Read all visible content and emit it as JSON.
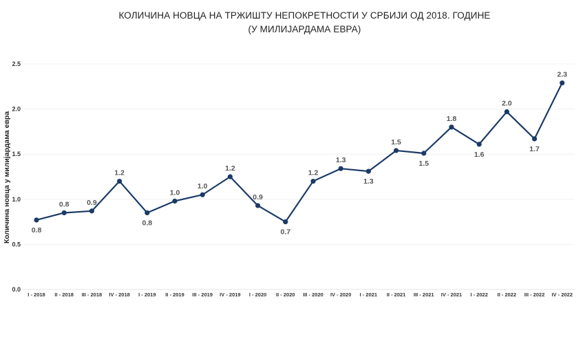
{
  "chart_data": {
    "type": "line",
    "title": "КОЛИЧИНА НОВЦА НА ТРЖИШТУ НЕПОКРЕТНОСТИ У СРБИЈИ ОД 2018. ГОДИНЕ",
    "subtitle": "(У МИЛИЈАРДАМА ЕВРА)",
    "ylabel": "Количина новца у милијардама евра",
    "xlabel": "",
    "ylim": [
      0,
      2.5
    ],
    "yticks": [
      "0.0",
      "0.5",
      "1.0",
      "1.5",
      "2.0",
      "2.5"
    ],
    "grid": true,
    "legend": "none",
    "line_color": "#1b3a66",
    "categories": [
      "I - 2018",
      "II - 2018",
      "III - 2018",
      "IV - 2018",
      "I - 2019",
      "II - 2019",
      "III - 2019",
      "IV - 2019",
      "I - 2020",
      "II - 2020",
      "III - 2020",
      "IV - 2020",
      "I - 2021",
      "II - 2021",
      "III - 2021",
      "IV - 2021",
      "I - 2022",
      "II - 2022",
      "III - 2022",
      "IV - 2022"
    ],
    "series": [
      {
        "values": [
          0.77,
          0.85,
          0.87,
          1.2,
          0.85,
          0.98,
          1.05,
          1.25,
          0.93,
          0.75,
          1.2,
          1.34,
          1.31,
          1.54,
          1.51,
          1.8,
          1.61,
          1.97,
          1.67,
          2.29
        ],
        "labels": [
          "0.8",
          "0.8",
          "0.9",
          "1.2",
          "0.8",
          "1.0",
          "1.0",
          "1.2",
          "0.9",
          "0.7",
          "1.2",
          "1.3",
          "1.3",
          "1.5",
          "1.5",
          "1.8",
          "1.6",
          "2.0",
          "1.7",
          "2.3"
        ],
        "label_positions": [
          "below",
          "above",
          "above",
          "above",
          "below",
          "above",
          "above",
          "above",
          "above",
          "below",
          "above",
          "above",
          "below",
          "above",
          "below",
          "above",
          "below",
          "above",
          "below",
          "above"
        ]
      }
    ]
  }
}
